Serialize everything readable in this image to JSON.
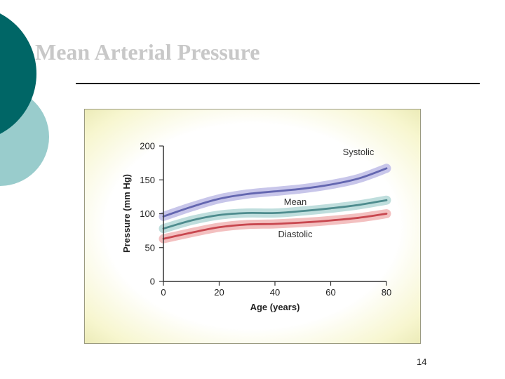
{
  "slide": {
    "title": "Mean Arterial Pressure",
    "page_number": "14"
  },
  "colors": {
    "accent_dark": "#006666",
    "accent_light": "#99cccc",
    "systolic": "#6366b0",
    "systolic_band": "#c8c6ea",
    "mean": "#4e8c8e",
    "mean_band": "#bfdedd",
    "diastolic": "#c8474f",
    "diastolic_band": "#f3c0c0",
    "axis": "#333333"
  },
  "chart_data": {
    "type": "line",
    "xlabel": "Age (years)",
    "ylabel": "Pressure (mm Hg)",
    "xlim": [
      0,
      80
    ],
    "ylim": [
      0,
      200
    ],
    "xticks": [
      0,
      20,
      40,
      60,
      80
    ],
    "yticks": [
      0,
      50,
      100,
      150,
      200
    ],
    "grid": false,
    "legend": "none",
    "x": [
      0,
      10,
      20,
      30,
      40,
      50,
      60,
      70,
      80
    ],
    "series": [
      {
        "name": "Systolic",
        "values": [
          96,
          110,
          122,
          129,
          133,
          137,
          143,
          152,
          167
        ]
      },
      {
        "name": "Mean",
        "values": [
          78,
          90,
          98,
          101,
          101,
          104,
          108,
          113,
          120
        ]
      },
      {
        "name": "Diastolic",
        "values": [
          63,
          72,
          80,
          84,
          85,
          87,
          90,
          94,
          100
        ]
      }
    ]
  }
}
